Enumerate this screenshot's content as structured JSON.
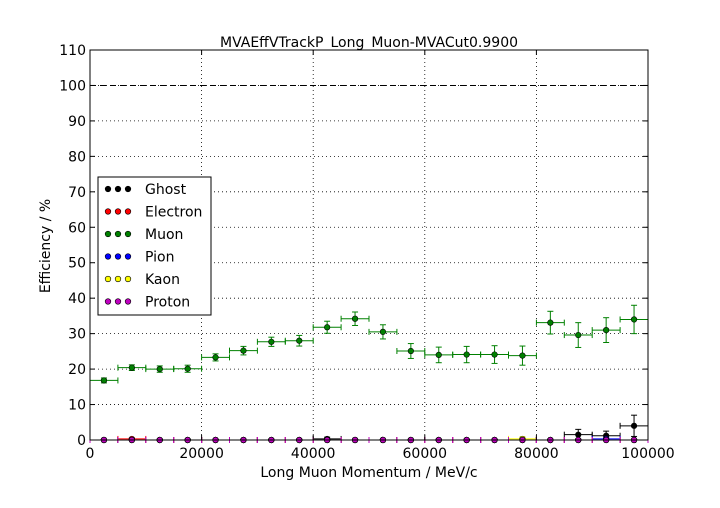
{
  "chart_data": {
    "type": "scatter",
    "title": "MVAEffVTrackP_Long_Muon-MVACut0.9900",
    "xlabel": "Long Muon Momentum / MeV/c",
    "ylabel": "Efficiency / %",
    "xlim": [
      0,
      100000
    ],
    "ylim": [
      0,
      110
    ],
    "x_ticks": [
      "0",
      "20000",
      "40000",
      "60000",
      "80000",
      "100000"
    ],
    "y_ticks": [
      "0",
      "10",
      "20",
      "30",
      "40",
      "50",
      "60",
      "70",
      "80",
      "90",
      "100",
      "110"
    ],
    "grid": true,
    "legend_position": "center-left",
    "reference_line": {
      "y": 100,
      "style": "dashed"
    },
    "bin_half_width": 2500,
    "x": [
      2500,
      7500,
      12500,
      17500,
      22500,
      27500,
      32500,
      37500,
      42500,
      47500,
      52500,
      57500,
      62500,
      67500,
      72500,
      77500,
      82500,
      87500,
      92500,
      97500
    ],
    "series": [
      {
        "name": "Ghost",
        "color": "#000000",
        "values": [
          0,
          0,
          0,
          0,
          0,
          0,
          0,
          0,
          0.3,
          0,
          0,
          0,
          0,
          0,
          0,
          0,
          0,
          1.5,
          1.2,
          4.0
        ],
        "errors": [
          0,
          0,
          0,
          0,
          0,
          0,
          0,
          0,
          0.5,
          0,
          0,
          0,
          0,
          0,
          0,
          0,
          0,
          1.5,
          1.3,
          3.0
        ]
      },
      {
        "name": "Electron",
        "color": "#ff0000",
        "values": [
          0,
          0.3,
          0,
          0,
          0,
          0,
          0,
          0,
          0,
          0,
          0,
          0,
          0,
          0,
          0,
          0,
          0,
          0,
          0,
          0
        ],
        "errors": [
          0,
          0.3,
          0,
          0,
          0,
          0,
          0,
          0,
          0,
          0,
          0,
          0,
          0,
          0,
          0,
          0,
          0,
          0,
          0,
          0
        ]
      },
      {
        "name": "Muon",
        "color": "#008000",
        "values": [
          16.8,
          20.4,
          20.0,
          20.1,
          23.3,
          25.2,
          27.7,
          28.0,
          31.8,
          34.2,
          30.5,
          25.1,
          24.0,
          24.1,
          24.1,
          23.8,
          33.1,
          29.6,
          31.0,
          34.0
        ],
        "errors": [
          0.7,
          0.8,
          0.9,
          1.0,
          1.0,
          1.2,
          1.3,
          1.5,
          1.7,
          1.9,
          2.0,
          2.1,
          2.2,
          2.3,
          2.5,
          2.7,
          3.2,
          3.5,
          3.5,
          4.0
        ]
      },
      {
        "name": "Pion",
        "color": "#0000ff",
        "values": [
          0,
          0,
          0,
          0,
          0,
          0,
          0,
          0,
          0,
          0,
          0,
          0,
          0,
          0,
          0,
          0,
          0,
          0,
          0.3,
          0
        ],
        "errors": [
          0,
          0,
          0,
          0,
          0,
          0,
          0,
          0,
          0,
          0,
          0,
          0,
          0,
          0,
          0,
          0,
          0,
          0,
          0.4,
          0
        ]
      },
      {
        "name": "Kaon",
        "color": "#ffff00",
        "values": [
          0,
          0,
          0,
          0,
          0,
          0,
          0,
          0,
          0,
          0,
          0,
          0,
          0,
          0,
          0,
          0.3,
          0,
          0,
          0,
          0
        ],
        "errors": [
          0,
          0,
          0,
          0,
          0,
          0,
          0,
          0,
          0,
          0,
          0,
          0,
          0,
          0,
          0,
          0.6,
          0,
          0,
          0,
          0
        ]
      },
      {
        "name": "Proton",
        "color": "#bf00bf",
        "values": [
          0,
          0,
          0,
          0,
          0,
          0,
          0,
          0,
          0,
          0,
          0,
          0,
          0,
          0,
          0,
          0,
          0,
          0,
          0,
          0
        ],
        "errors": [
          0,
          0,
          0,
          0,
          0,
          0,
          0,
          0,
          0,
          0,
          0,
          0,
          0,
          0,
          0,
          0,
          0,
          0,
          0,
          0
        ]
      }
    ]
  }
}
